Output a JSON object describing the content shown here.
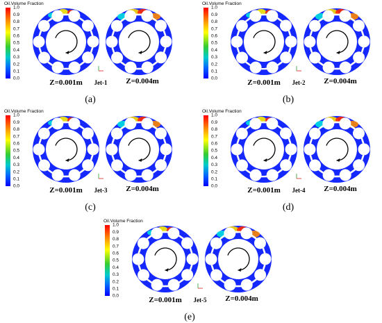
{
  "panels": [
    {
      "legend_title": "Oil.Volume Fraction",
      "legend_ticks": [
        "1.0",
        "0.9",
        "0.8",
        "0.7",
        "0.6",
        "0.5",
        "0.4",
        "0.3",
        "0.2",
        "0.1",
        "0.0"
      ],
      "left_label": "Z=0.001m",
      "jet": "Jet-1",
      "right_label": "Z=0.004m",
      "caption": "(a)"
    },
    {
      "legend_title": "Oil.Volume Fraction",
      "legend_ticks": [
        "1.0",
        "0.9",
        "0.8",
        "0.7",
        "0.6",
        "0.5",
        "0.4",
        "0.3",
        "0.2",
        "0.1",
        "0.0"
      ],
      "left_label": "Z=0.001m",
      "jet": "Jet-2",
      "right_label": "Z=0.004m",
      "caption": "(b)"
    },
    {
      "legend_title": "Oil.Volume Fraction",
      "legend_ticks": [
        "1.0",
        "0.9",
        "0.8",
        "0.7",
        "0.6",
        "0.5",
        "0.4",
        "0.3",
        "0.2",
        "0.1",
        "0.0"
      ],
      "left_label": "Z=0.001m",
      "jet": "Jet-3",
      "right_label": "Z=0.004m",
      "caption": "(c)"
    },
    {
      "legend_title": "Oil.Volume Fraction",
      "legend_ticks": [
        "1.0",
        "0.9",
        "0.8",
        "0.7",
        "0.6",
        "0.5",
        "0.4",
        "0.3",
        "0.2",
        "0.1",
        "0.0"
      ],
      "left_label": "Z=0.001m",
      "jet": "Jet-4",
      "right_label": "Z=0.004m",
      "caption": "(d)"
    },
    {
      "legend_title": "Oil.Volume Fraction",
      "legend_ticks": [
        "1.0",
        "0.9",
        "0.8",
        "0.7",
        "0.6",
        "0.5",
        "0.4",
        "0.3",
        "0.2",
        "0.1",
        "0.0"
      ],
      "left_label": "Z=0.001m",
      "jet": "Jet-5",
      "right_label": "Z=0.004m",
      "caption": "(e)"
    }
  ]
}
